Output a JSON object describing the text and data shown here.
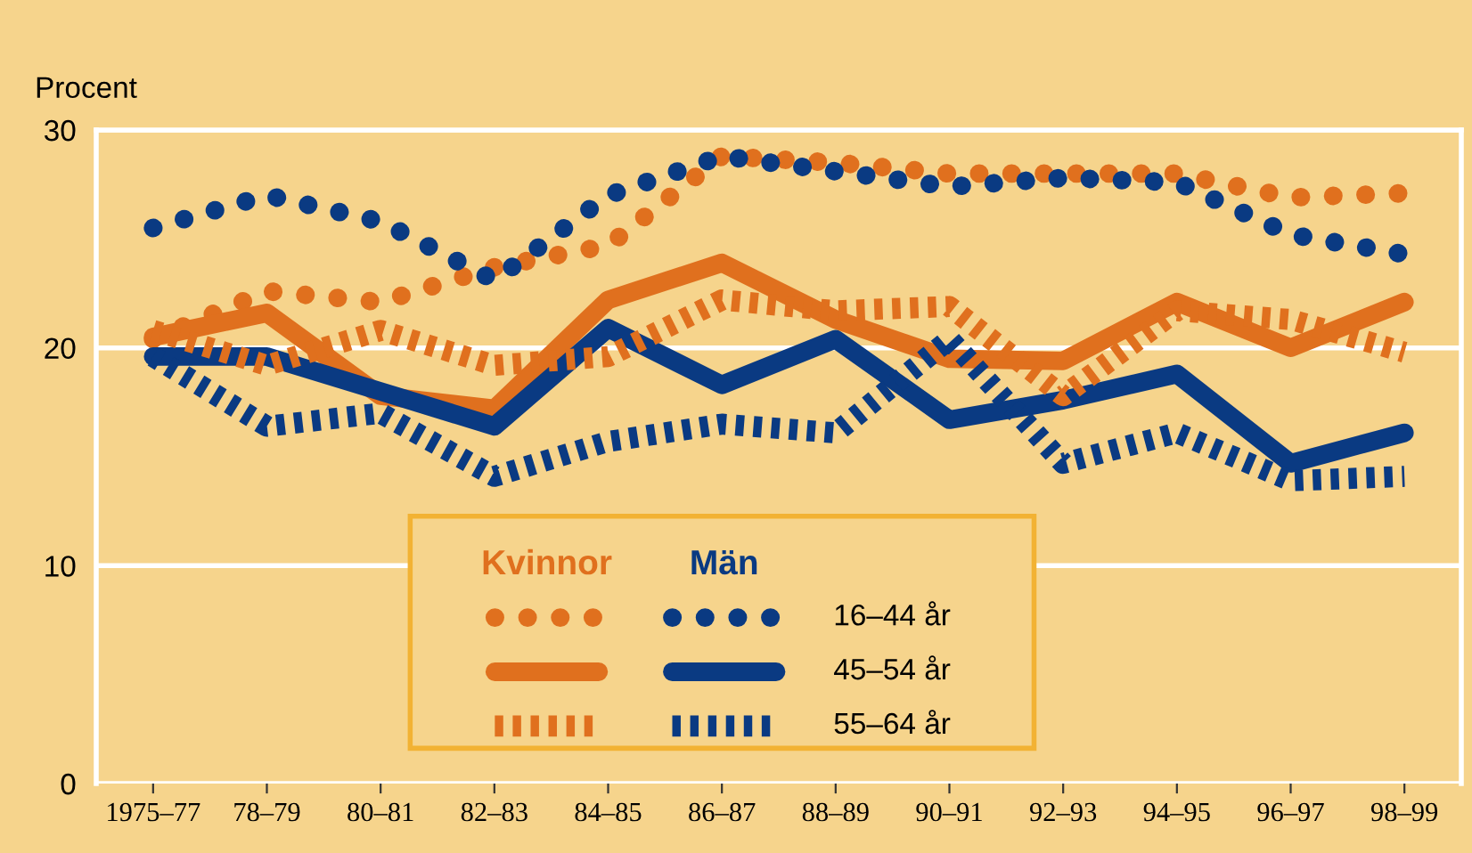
{
  "chart_data": {
    "type": "line",
    "ylabel": "Procent",
    "categories": [
      "1975–77",
      "78–79",
      "80–81",
      "82–83",
      "84–85",
      "86–87",
      "88–89",
      "90–91",
      "92–93",
      "94–95",
      "96–97",
      "98–99"
    ],
    "ylim": [
      0,
      30
    ],
    "yticks": [
      0,
      10,
      20,
      30
    ],
    "grid": "y",
    "legend": "bottom",
    "marker": "none",
    "annotations": [
      "Kvinnor",
      "Män"
    ],
    "series": [
      {
        "color": "#e0701e",
        "line_style": "dotted",
        "values": [
          20.4,
          22.6,
          22.1,
          23.7,
          24.7,
          28.8,
          28.5,
          28.0,
          28.0,
          28.0,
          26.9,
          27.1
        ]
      },
      {
        "name": "16–44 år",
        "color": "#0a3a82",
        "line_style": "dotted",
        "values": [
          25.5,
          27.0,
          25.8,
          23.1,
          27.0,
          28.8,
          28.1,
          27.4,
          27.8,
          27.6,
          25.2,
          24.3
        ]
      },
      {
        "color": "#e0701e",
        "line_style": "solid",
        "values": [
          20.5,
          21.6,
          17.8,
          17.2,
          22.2,
          23.9,
          21.3,
          19.5,
          19.4,
          22.1,
          20.0,
          22.1
        ]
      },
      {
        "name": "45–54 år",
        "color": "#0a3a82",
        "line_style": "solid",
        "values": [
          19.6,
          19.6,
          18.0,
          16.4,
          20.9,
          18.3,
          20.4,
          16.7,
          17.6,
          18.8,
          14.7,
          16.1
        ]
      },
      {
        "color": "#e0701e",
        "line_style": "dashed",
        "values": [
          20.8,
          19.2,
          20.8,
          19.2,
          19.6,
          22.2,
          21.7,
          21.9,
          17.8,
          21.7,
          21.3,
          19.8
        ]
      },
      {
        "name": "55–64 år",
        "color": "#0a3a82",
        "line_style": "dashed",
        "values": [
          19.6,
          16.4,
          17.0,
          14.1,
          15.7,
          16.5,
          16.1,
          20.4,
          14.7,
          16.1,
          13.9,
          14.1
        ]
      }
    ]
  }
}
